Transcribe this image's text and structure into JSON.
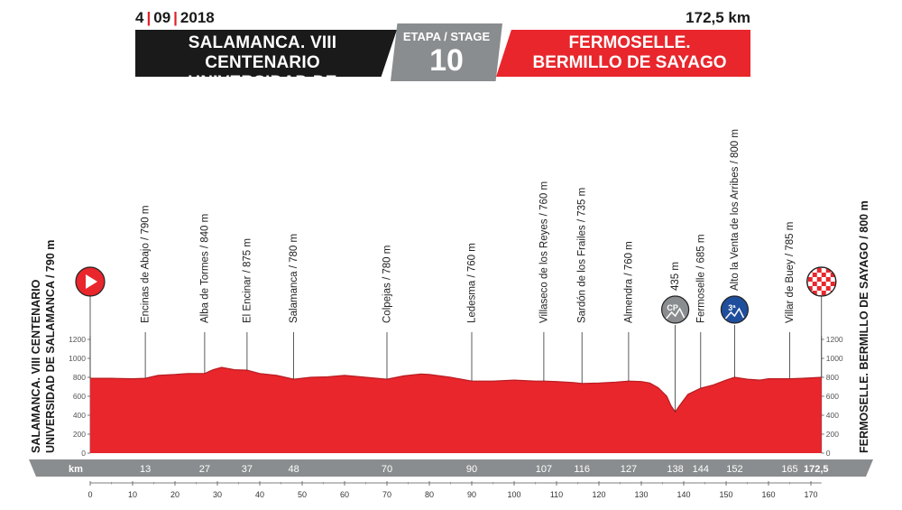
{
  "header": {
    "date_day": "4",
    "date_month": "09",
    "date_year": "2018",
    "distance": "172,5 km",
    "start_line1": "SALAMANCA. VIII CENTENARIO",
    "start_line2": "UNIVERSIDAD DE SALAMANCA",
    "stage_label": "ETAPA / STAGE",
    "stage_number": "10",
    "finish_line1": "FERMOSELLE.",
    "finish_line2": "BERMILLO DE SAYAGO"
  },
  "colors": {
    "profile": "#e8262c",
    "profile_dark": "#b81d22",
    "start_box": "#1a1a1a",
    "stage_box": "#8a8d8f",
    "km_band": "#8a8d8f",
    "cat_climb": "#1f4e9c",
    "special_climb": "#8a8d8f",
    "finish_flag": "#e8262c"
  },
  "chart_data": {
    "type": "area",
    "xlabel": "km",
    "xlim": [
      0,
      172.5
    ],
    "ylim": [
      0,
      1200
    ],
    "y_ticks": [
      0,
      200,
      400,
      600,
      800,
      1000,
      1200
    ],
    "x_ticks": [
      0,
      10,
      20,
      30,
      40,
      50,
      60,
      70,
      80,
      90,
      100,
      110,
      120,
      130,
      140,
      150,
      160,
      170
    ],
    "start_label_line1": "SALAMANCA. VIII CENTENARIO",
    "start_label_line2": "UNIVERSIDAD DE SALAMANCA / 790 m",
    "finish_label": "FERMOSELLE. BERMILLO DE SAYAGO / 800 m",
    "finish_km_label": "172,5",
    "start_icon": "play-icon",
    "finish_icon": "checkered-flag-icon",
    "profile": {
      "x": [
        0,
        5,
        10,
        13,
        16,
        20,
        23,
        27,
        29,
        31,
        34,
        37,
        40,
        44,
        48,
        52,
        56,
        60,
        65,
        70,
        74,
        78,
        80,
        85,
        90,
        95,
        100,
        105,
        107,
        110,
        114,
        116,
        120,
        124,
        127,
        130,
        132,
        134,
        136,
        137,
        138,
        139,
        141,
        144,
        147,
        150,
        152,
        155,
        158,
        160,
        165,
        168,
        172.5
      ],
      "y": [
        790,
        790,
        785,
        790,
        820,
        830,
        840,
        840,
        880,
        905,
        880,
        875,
        840,
        820,
        780,
        800,
        805,
        820,
        800,
        780,
        815,
        835,
        830,
        800,
        760,
        760,
        770,
        760,
        760,
        755,
        745,
        735,
        740,
        750,
        760,
        755,
        740,
        690,
        600,
        500,
        435,
        500,
        620,
        685,
        720,
        770,
        800,
        780,
        770,
        785,
        785,
        790,
        800
      ]
    },
    "waypoints": [
      {
        "km": 13,
        "km_label": "13",
        "label": "Encinas de Abajo / 790 m"
      },
      {
        "km": 27,
        "km_label": "27",
        "label": "Alba de Tormes / 840 m"
      },
      {
        "km": 37,
        "km_label": "37",
        "label": "El Encinar / 875 m"
      },
      {
        "km": 48,
        "km_label": "48",
        "label": "Salamanca / 780 m"
      },
      {
        "km": 70,
        "km_label": "70",
        "label": "Colpejas / 780 m"
      },
      {
        "km": 90,
        "km_label": "90",
        "label": "Ledesma / 760 m"
      },
      {
        "km": 107,
        "km_label": "107",
        "label": "Villaseco de los Reyes / 760 m"
      },
      {
        "km": 116,
        "km_label": "116",
        "label": "Sardón de los Frailes / 735 m"
      },
      {
        "km": 127,
        "km_label": "127",
        "label": "Almendra / 760 m"
      },
      {
        "km": 138,
        "km_label": "138",
        "label": "435 m",
        "badge": "CP",
        "badge_type": "special"
      },
      {
        "km": 144,
        "km_label": "144",
        "label": "Fermoselle / 685 m"
      },
      {
        "km": 152,
        "km_label": "152",
        "label": "Alto la Venta de los Arribes / 800 m",
        "badge": "3ª",
        "badge_type": "category"
      },
      {
        "km": 165,
        "km_label": "165",
        "label": "Villar de Buey / 785 m"
      }
    ]
  }
}
